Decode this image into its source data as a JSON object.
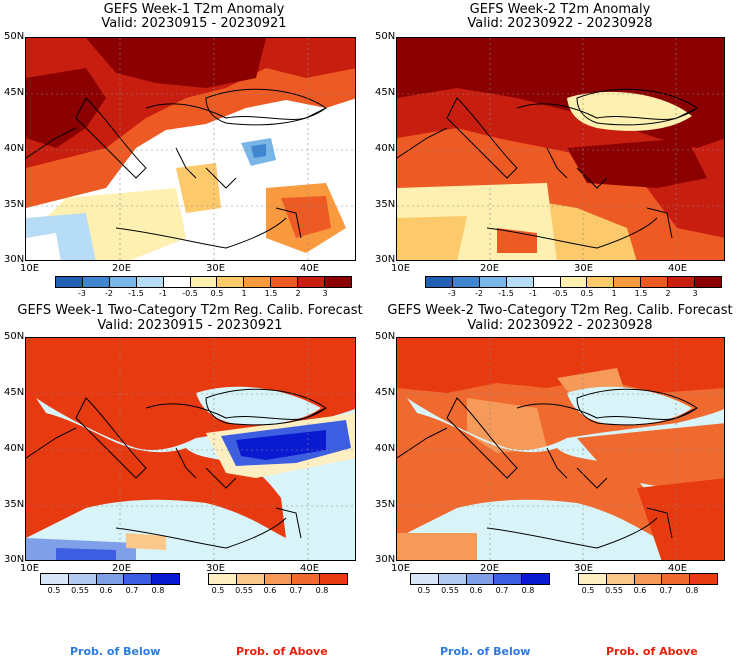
{
  "panels": [
    {
      "title1": "GEFS Week-1 T2m Anomaly",
      "title2": "Valid: 20230915 - 20230921"
    },
    {
      "title1": "GEFS Week-2 T2m Anomaly",
      "title2": "Valid: 20230922 - 20230928"
    },
    {
      "title1": "GEFS Week-1 Two-Category T2m Reg. Calib. Forecast",
      "title2": "Valid: 20230915 - 20230921"
    },
    {
      "title1": "GEFS Week-2 Two-Category T2m Reg. Calib. Forecast",
      "title2": "Valid: 20230922 - 20230928"
    }
  ],
  "lat_labels": [
    "50N",
    "45N",
    "40N",
    "35N",
    "30N"
  ],
  "lon_labels": [
    "10E",
    "20E",
    "30E",
    "40E"
  ],
  "anomaly_colorbar": {
    "ticks": [
      "-3",
      "-2",
      "-1.5",
      "-1",
      "-0.5",
      "0.5",
      "1",
      "1.5",
      "2",
      "3"
    ],
    "colors": [
      "#1f5fb4",
      "#3f86d0",
      "#7ab5e8",
      "#b7dcf5",
      "#ffffff",
      "#fdf0b0",
      "#fcc96b",
      "#f99a3e",
      "#ee5a24",
      "#c81e10",
      "#8b0000"
    ]
  },
  "below_colorbar": {
    "ticks": [
      "0.5",
      "0.55",
      "0.6",
      "0.7",
      "0.8"
    ],
    "colors": [
      "#d8e6f7",
      "#b2cbf0",
      "#7f9fe8",
      "#3d5ee0",
      "#0a1ad0"
    ]
  },
  "above_colorbar": {
    "ticks": [
      "0.5",
      "0.55",
      "0.6",
      "0.7",
      "0.8"
    ],
    "colors": [
      "#fdefc2",
      "#fbc88b",
      "#f59a58",
      "#f06a30",
      "#e83a10"
    ]
  },
  "legend": {
    "below": "Prob. of Below",
    "above": "Prob. of Above",
    "below_color": "#2b7be0",
    "above_color": "#e8200c"
  },
  "map_colors": {
    "sea_calibrated": "#d8f4f8"
  }
}
